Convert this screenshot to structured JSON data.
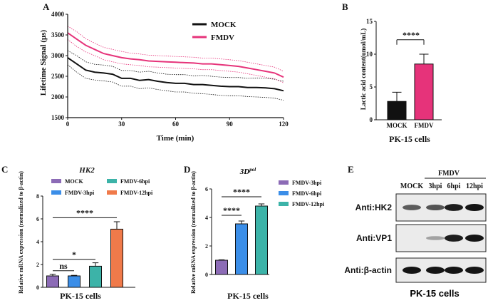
{
  "panel_labels": {
    "a": "A",
    "b": "B",
    "c": "C",
    "d": "D",
    "e": "E"
  },
  "colors": {
    "mock": "#111111",
    "fmdv": "#e6337a",
    "mock_bar": "#8c6bb6",
    "h3": "#3b8ee8",
    "h6": "#3cb3a8",
    "h12": "#f07a4a",
    "d3": "#8c6bb6",
    "d6": "#3b8ee8",
    "d12": "#3cb3a8"
  },
  "chart_data": [
    {
      "id": "A",
      "type": "line",
      "title": "",
      "xlabel": "Time (min)",
      "ylabel": "Lifetime Signal (μs)",
      "xlim": [
        0,
        120
      ],
      "ylim": [
        1500,
        4000
      ],
      "xticks": [
        "0",
        "30",
        "60",
        "90",
        "120"
      ],
      "yticks": [
        "1500",
        "2000",
        "2500",
        "3000",
        "3500",
        "4000"
      ],
      "x": [
        0,
        5,
        10,
        15,
        20,
        25,
        30,
        35,
        40,
        45,
        50,
        55,
        60,
        65,
        70,
        75,
        80,
        85,
        90,
        95,
        100,
        105,
        110,
        115,
        120
      ],
      "series": [
        {
          "name": "MOCK",
          "values": [
            2950,
            2800,
            2650,
            2600,
            2580,
            2550,
            2450,
            2450,
            2400,
            2420,
            2380,
            2350,
            2330,
            2330,
            2300,
            2300,
            2280,
            2260,
            2250,
            2250,
            2230,
            2230,
            2220,
            2200,
            2150
          ],
          "band": [
            170,
            200,
            200,
            190,
            190,
            190,
            190,
            190,
            200,
            200,
            200,
            200,
            210,
            210,
            210,
            220,
            220,
            220,
            220,
            220,
            220,
            230,
            230,
            230,
            230
          ]
        },
        {
          "name": "FMDV",
          "values": [
            3550,
            3400,
            3250,
            3150,
            3050,
            3000,
            2950,
            2920,
            2900,
            2870,
            2860,
            2850,
            2840,
            2830,
            2820,
            2800,
            2800,
            2780,
            2760,
            2740,
            2700,
            2660,
            2620,
            2580,
            2480
          ],
          "band": [
            160,
            180,
            160,
            150,
            150,
            150,
            150,
            140,
            140,
            140,
            140,
            140,
            140,
            140,
            140,
            140,
            140,
            140,
            140,
            140,
            140,
            140,
            140,
            140,
            140
          ]
        }
      ]
    },
    {
      "id": "B",
      "type": "bar",
      "title": "",
      "xlabel": "PK-15 cells",
      "ylabel": "Lactic acid content(umol/mL)",
      "categories": [
        "MOCK",
        "FMDV"
      ],
      "values": [
        2.8,
        8.5
      ],
      "errors": [
        1.4,
        1.5
      ],
      "ylim": [
        0,
        15
      ],
      "yticks": [
        "0",
        "5",
        "10",
        "15"
      ],
      "significance": "****"
    },
    {
      "id": "C",
      "type": "bar",
      "title": "HK2",
      "xlabel": "PK-15 cells",
      "ylabel": "Relative mRNA expression (normalized to β-actin)",
      "categories": [
        "MOCK",
        "FMDV-3hpi",
        "FMDV-6hpi",
        "FMDV-12hpi"
      ],
      "values": [
        1.0,
        1.0,
        1.85,
        5.1
      ],
      "errors": [
        0.15,
        0.05,
        0.3,
        0.65
      ],
      "ylim": [
        0,
        8
      ],
      "yticks": [
        "0",
        "2",
        "4",
        "6",
        "8"
      ],
      "significance": [
        "ns",
        "*",
        "****"
      ]
    },
    {
      "id": "D",
      "type": "bar",
      "title": "3D",
      "title_sup": "pol",
      "xlabel": "PK-15 cells",
      "ylabel": "Relative mRNA expression (normalized to β-actin)",
      "categories": [
        "FMDV-3hpi",
        "FMDV-6hpi",
        "FMDV-12hpi"
      ],
      "values": [
        1.0,
        3.55,
        4.8
      ],
      "errors": [
        0.03,
        0.2,
        0.15
      ],
      "ylim": [
        0,
        6
      ],
      "yticks": [
        "0",
        "2",
        "4",
        "6"
      ],
      "significance": [
        "****",
        "****"
      ]
    }
  ],
  "blot": {
    "group_label": "FMDV",
    "lanes": [
      "MOCK",
      "3hpi",
      "6hpi",
      "12hpi"
    ],
    "rows": [
      {
        "label": "Anti:HK2",
        "intensity": [
          0.55,
          0.6,
          0.95,
          1.0
        ]
      },
      {
        "label": "Anti:VP1",
        "intensity": [
          0.0,
          0.12,
          0.95,
          1.0
        ]
      },
      {
        "label": "Anti:β-actin",
        "intensity": [
          1.0,
          1.0,
          1.0,
          1.0
        ]
      }
    ],
    "caption": "PK-15 cells"
  }
}
